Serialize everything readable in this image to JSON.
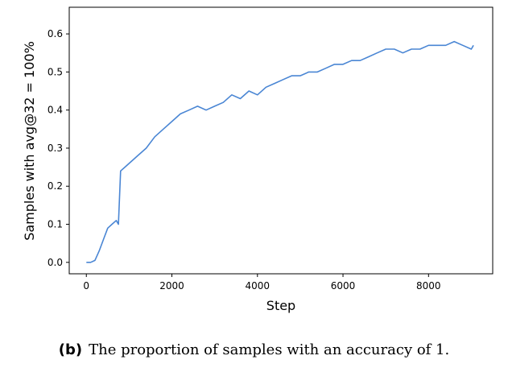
{
  "chart_data": {
    "type": "line",
    "title": "",
    "xlabel": "Step",
    "ylabel": "Samples with avg@32 = 100%",
    "xlim": [
      -400,
      9500
    ],
    "ylim": [
      -0.03,
      0.67
    ],
    "xticks": [
      0,
      2000,
      4000,
      6000,
      8000
    ],
    "xtick_labels": [
      "0",
      "2000",
      "4000",
      "6000",
      "8000"
    ],
    "yticks": [
      0.0,
      0.1,
      0.2,
      0.3,
      0.4,
      0.5,
      0.6
    ],
    "ytick_labels": [
      "0.0",
      "0.1",
      "0.2",
      "0.3",
      "0.4",
      "0.5",
      "0.6"
    ],
    "grid": false,
    "legend": "none",
    "series": [
      {
        "color": "#4a86d4",
        "x": [
          0,
          100,
          200,
          300,
          400,
          500,
          600,
          700,
          750,
          800,
          900,
          1000,
          1200,
          1400,
          1600,
          1800,
          2000,
          2200,
          2400,
          2600,
          2800,
          3000,
          3200,
          3400,
          3600,
          3800,
          4000,
          4200,
          4400,
          4600,
          4800,
          5000,
          5200,
          5400,
          5600,
          5800,
          6000,
          6200,
          6400,
          6600,
          6800,
          7000,
          7200,
          7400,
          7600,
          7800,
          8000,
          8200,
          8400,
          8600,
          8800,
          9000,
          9050
        ],
        "y": [
          0.0,
          0.0,
          0.005,
          0.03,
          0.06,
          0.09,
          0.1,
          0.11,
          0.1,
          0.24,
          0.25,
          0.26,
          0.28,
          0.3,
          0.33,
          0.35,
          0.37,
          0.39,
          0.4,
          0.41,
          0.4,
          0.41,
          0.42,
          0.44,
          0.43,
          0.45,
          0.44,
          0.46,
          0.47,
          0.48,
          0.49,
          0.49,
          0.5,
          0.5,
          0.51,
          0.52,
          0.52,
          0.53,
          0.53,
          0.54,
          0.55,
          0.56,
          0.56,
          0.55,
          0.56,
          0.56,
          0.57,
          0.57,
          0.57,
          0.58,
          0.57,
          0.56,
          0.57
        ]
      }
    ]
  },
  "caption": {
    "label": "(b)",
    "text": "The proportion of samples with an accuracy of 1."
  }
}
